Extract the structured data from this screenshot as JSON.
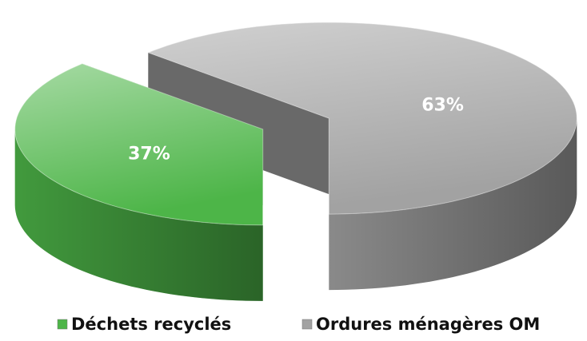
{
  "chart_data": {
    "type": "pie3d",
    "categories": [
      "Déchets recyclés",
      "Ordures ménagères OM"
    ],
    "values": [
      37,
      63
    ],
    "value_labels": [
      "37%",
      "63%"
    ],
    "colors": [
      "#4db548",
      "#a2a2a2"
    ],
    "legend": "bottom"
  }
}
